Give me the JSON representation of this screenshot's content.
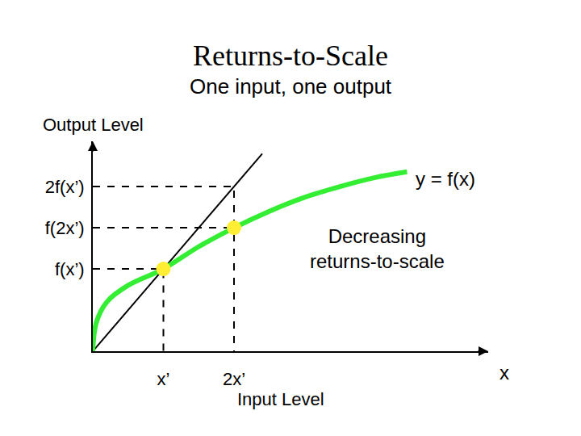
{
  "chart_data": {
    "type": "line",
    "title": "Returns-to-Scale",
    "subtitle": "One input, one output",
    "y_label": "Output Level",
    "x_label": "Input Level",
    "annotations": [
      "x",
      "y = f(x)",
      "Decreasing\nreturns-to-scale"
    ],
    "xlim": [
      0,
      5.6
    ],
    "ylim": [
      0,
      2.55
    ],
    "xticks": [
      {
        "value": 1,
        "label": "x’"
      },
      {
        "value": 2,
        "label": "2x’"
      }
    ],
    "yticks": [
      {
        "value": 1,
        "label": "f(x’)"
      },
      {
        "value": 1.5,
        "label": "f(2x’)"
      },
      {
        "value": 2,
        "label": "2f(x’)"
      }
    ],
    "grid": false,
    "tick_labels": true,
    "series": [
      {
        "type": "line",
        "color": "#000000",
        "line_style": "dashed",
        "x": [
          0,
          2,
          2
        ],
        "values": [
          2,
          2,
          0
        ]
      },
      {
        "type": "line",
        "color": "#000000",
        "line_style": "dashed",
        "x": [
          0,
          2
        ],
        "values": [
          1.5,
          1.5
        ]
      },
      {
        "type": "line",
        "color": "#000000",
        "line_style": "dashed",
        "x": [
          0,
          1,
          1
        ],
        "values": [
          1,
          1,
          0
        ]
      },
      {
        "type": "line",
        "color": "#000000",
        "line_style": "solid",
        "x": [
          0,
          2.4
        ],
        "values": [
          0,
          2.4
        ]
      },
      {
        "type": "line",
        "color": "#33ee33",
        "line_style": "solid",
        "x": [
          0,
          0.05,
          0.2,
          0.5,
          1,
          1.5,
          2,
          2.5,
          3,
          3.5,
          4,
          4.45
        ],
        "values": [
          0,
          0.35,
          0.6,
          0.8,
          1,
          1.27,
          1.5,
          1.7,
          1.87,
          2.0,
          2.11,
          2.18
        ]
      },
      {
        "type": "scatter",
        "color": "#ffee33",
        "marker": "circle",
        "x": [
          1,
          2
        ],
        "values": [
          1,
          1.5
        ]
      }
    ]
  }
}
